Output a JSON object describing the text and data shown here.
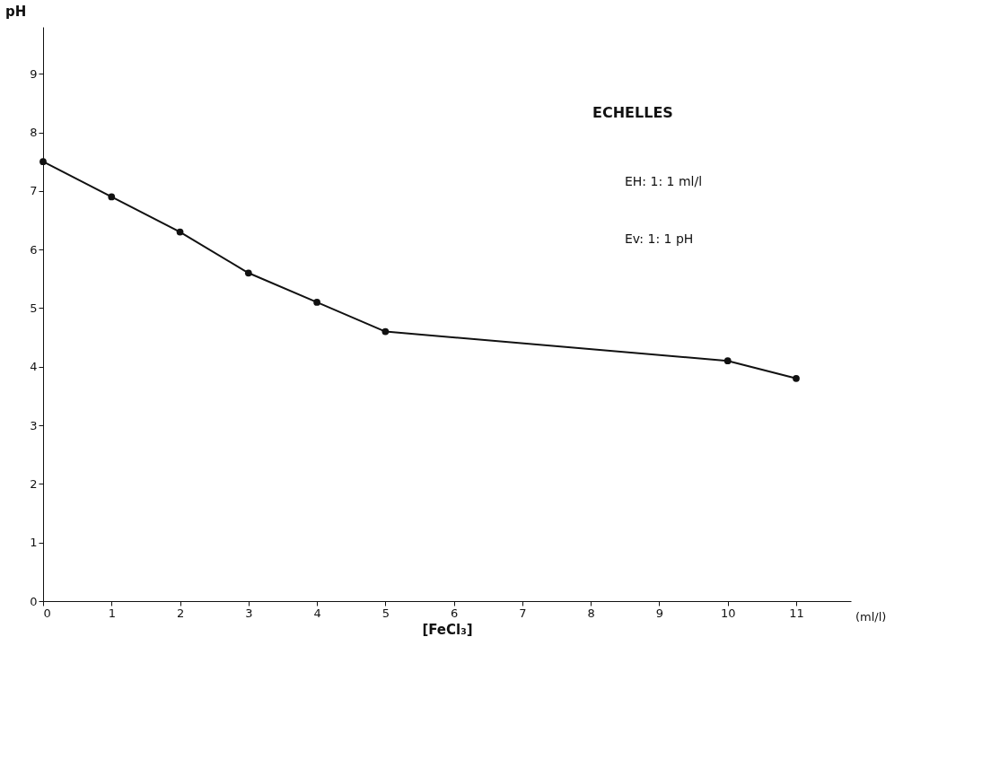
{
  "chart_data": {
    "type": "line",
    "xlabel": "[FeCl₃]",
    "ylabel": "pH",
    "x": [
      0,
      1,
      2,
      3,
      4,
      5,
      10,
      11
    ],
    "series": [
      {
        "color": "#111111",
        "values": [
          7.5,
          6.9,
          6.3,
          5.6,
          5.1,
          4.6,
          4.1,
          3.8
        ]
      }
    ],
    "xlim": [
      0,
      11.8
    ],
    "xticks": [
      0,
      1,
      2,
      3,
      4,
      5,
      6,
      7,
      8,
      9,
      10,
      11
    ],
    "ylim": [
      0,
      9.8
    ],
    "yticks": [
      0,
      1,
      2,
      3,
      4,
      5,
      6,
      7,
      8,
      9
    ],
    "grid": false,
    "legend": false,
    "marker": "circle",
    "line_style": "solid",
    "annotations": [
      "(ml/l)",
      "ECHELLES",
      "EH: 1: 1 ml/l",
      "Ev: 1: 1 pH"
    ]
  }
}
